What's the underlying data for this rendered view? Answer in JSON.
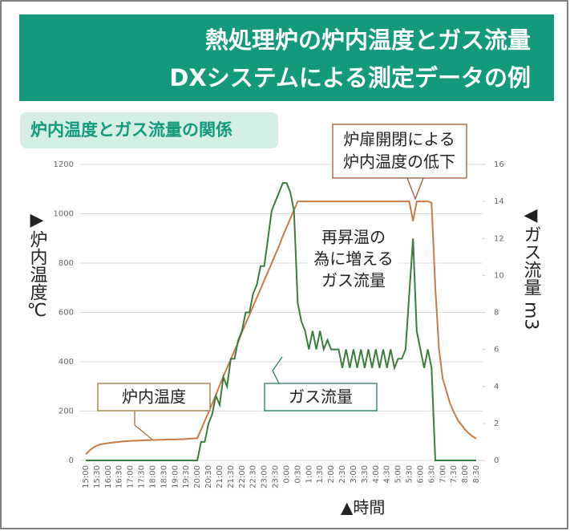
{
  "header": {
    "title_lines": [
      "熱処理炉の炉内温度とガス流量",
      "DXシステムによる測定データの例"
    ],
    "subtitle": "炉内温度とガス流量の関係"
  },
  "chart_data": {
    "type": "line",
    "categories": [
      "15:00",
      null,
      null,
      "15:30",
      null,
      null,
      "16:00",
      null,
      null,
      "16:30",
      null,
      null,
      "17:00",
      null,
      null,
      "17:30",
      null,
      null,
      "18:00",
      null,
      null,
      "18:30",
      null,
      null,
      "19:00",
      null,
      null,
      "19:30",
      null,
      null,
      "20:00",
      null,
      null,
      "20:30",
      null,
      null,
      "21:00",
      null,
      null,
      "21:30",
      null,
      null,
      "22:00",
      null,
      null,
      "22:30",
      null,
      null,
      "23:00",
      null,
      null,
      "23:30",
      null,
      null,
      "0:00",
      null,
      null,
      "0:30",
      null,
      null,
      "1:00",
      null,
      null,
      "1:30",
      null,
      null,
      "2:00",
      null,
      null,
      "2:30",
      null,
      null,
      "3:00",
      null,
      null,
      "3:30",
      null,
      null,
      "4:00",
      null,
      null,
      "4:30",
      null,
      null,
      "5:00",
      null,
      null,
      "5:30",
      null,
      null,
      "6:00",
      null,
      null,
      "6:30",
      null,
      null,
      "7:00",
      null,
      null,
      "7:30",
      null,
      null,
      "8:00",
      null,
      null,
      "8:30"
    ],
    "series": [
      {
        "name": "炉内温度",
        "color": "#c97b45",
        "values": [
          25,
          40,
          52,
          60,
          65,
          68,
          70,
          72,
          74,
          75,
          77,
          78,
          79,
          80,
          80,
          81,
          82,
          82,
          83,
          83,
          84,
          84,
          85,
          85,
          85,
          86,
          86,
          87,
          88,
          89,
          90,
          125,
          160,
          195,
          230,
          265,
          305,
          340,
          375,
          410,
          445,
          480,
          520,
          555,
          590,
          625,
          660,
          695,
          730,
          765,
          800,
          835,
          870,
          910,
          945,
          980,
          1015,
          1050,
          1050,
          1050,
          1050,
          1050,
          1050,
          1050,
          1050,
          1050,
          1050,
          1050,
          1050,
          1050,
          1050,
          1050,
          1050,
          1050,
          1050,
          1050,
          1050,
          1050,
          1050,
          1050,
          1050,
          1050,
          1050,
          1050,
          1050,
          1050,
          1050,
          1050,
          970,
          1050,
          1050,
          1050,
          1050,
          1045,
          700,
          450,
          330,
          280,
          230,
          195,
          165,
          145,
          125,
          110,
          98,
          88
        ]
      },
      {
        "name": "ガス流量",
        "color": "#3a7d3e",
        "axis": "y2",
        "values": [
          0,
          0,
          0,
          0,
          0,
          0,
          0,
          0,
          0,
          0,
          0,
          0,
          0,
          0,
          0,
          0,
          0,
          0,
          0,
          0,
          0,
          0,
          0,
          0,
          0,
          0,
          0,
          0,
          0,
          0,
          0,
          1,
          1,
          2,
          2.5,
          3.5,
          3,
          4.5,
          4,
          5.5,
          5.5,
          6.5,
          7,
          8,
          8,
          9,
          9.5,
          10.5,
          10.5,
          12,
          13.5,
          14,
          14.5,
          15,
          15,
          14.5,
          13.5,
          8.5,
          7.5,
          7,
          6,
          7,
          6,
          7,
          6,
          6.5,
          6,
          6,
          6,
          5,
          6,
          5,
          6,
          5,
          6,
          5,
          6,
          5,
          6,
          5,
          6,
          5,
          6,
          5,
          5.5,
          5.5,
          6,
          9,
          12,
          7,
          6,
          5,
          6,
          5,
          0,
          0,
          0,
          0,
          0,
          0,
          0,
          0,
          0,
          0,
          0,
          0
        ]
      }
    ],
    "ylim": [
      0,
      1200
    ],
    "yticks": [
      0,
      200,
      400,
      600,
      800,
      1000,
      1200
    ],
    "y2lim": [
      0,
      16
    ],
    "y2ticks": [
      0,
      2,
      4,
      6,
      8,
      10,
      12,
      14,
      16
    ],
    "grid": true,
    "y_label": "▶炉内温度℃",
    "y2_label": "◀ガス流量 m3",
    "x_label": "▲時間",
    "annotations": [
      {
        "lines": [
          "炉内温度"
        ]
      },
      {
        "lines": [
          "ガス流量"
        ]
      },
      {
        "lines": [
          "炉扉開閉による",
          "炉内温度の低下"
        ]
      },
      {
        "lines": [
          "再昇温の",
          "為に増える",
          "ガス流量"
        ]
      }
    ]
  }
}
